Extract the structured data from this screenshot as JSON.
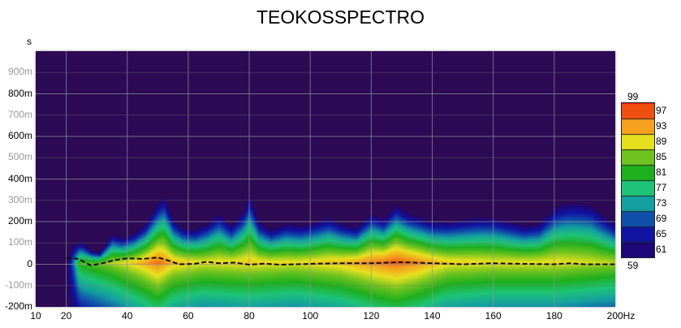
{
  "chart_data": {
    "type": "heatmap",
    "title": "TEOKOSSPECTRO",
    "ylabel": "s",
    "xlabel": "Hz",
    "xlim": [
      10,
      200
    ],
    "ylim_ms": [
      -200,
      1000
    ],
    "x_ticks": [
      "10",
      "20",
      "40",
      "60",
      "80",
      "100",
      "120",
      "140",
      "160",
      "180",
      "200Hz"
    ],
    "x_tick_values": [
      10,
      20,
      40,
      60,
      80,
      100,
      120,
      140,
      160,
      180,
      200
    ],
    "y_ticks": [
      {
        "label": "900m",
        "v": 900,
        "minor": true
      },
      {
        "label": "800m",
        "v": 800,
        "minor": false
      },
      {
        "label": "700m",
        "v": 700,
        "minor": true
      },
      {
        "label": "600m",
        "v": 600,
        "minor": false
      },
      {
        "label": "500m",
        "v": 500,
        "minor": true
      },
      {
        "label": "400m",
        "v": 400,
        "minor": false
      },
      {
        "label": "300m",
        "v": 300,
        "minor": true
      },
      {
        "label": "200m",
        "v": 200,
        "minor": false
      },
      {
        "label": "100m",
        "v": 100,
        "minor": true
      },
      {
        "label": "0",
        "v": 0,
        "minor": false
      },
      {
        "label": "-100m",
        "v": -100,
        "minor": true
      },
      {
        "label": "-200m",
        "v": -200,
        "minor": false
      }
    ],
    "colorbar": {
      "min_label": "59",
      "max_label": "99",
      "labels": [
        "97",
        "93",
        "89",
        "85",
        "81",
        "77",
        "73",
        "69",
        "65",
        "61"
      ],
      "range": [
        59,
        99
      ]
    },
    "decay_envelope_ms": {
      "freq": [
        20,
        22,
        25,
        28,
        31,
        35,
        38,
        42,
        46,
        50,
        52,
        55,
        58,
        62,
        66,
        70,
        74,
        78,
        80,
        83,
        87,
        92,
        97,
        102,
        106,
        110,
        115,
        120,
        124,
        128,
        132,
        136,
        140,
        145,
        150,
        155,
        160,
        165,
        170,
        175,
        180,
        184,
        188,
        192,
        196,
        200
      ],
      "top_ms": [
        0,
        100,
        110,
        70,
        60,
        150,
        130,
        150,
        200,
        300,
        330,
        220,
        180,
        170,
        200,
        250,
        190,
        260,
        340,
        210,
        170,
        200,
        190,
        210,
        230,
        200,
        180,
        250,
        220,
        290,
        250,
        230,
        210,
        210,
        220,
        230,
        230,
        210,
        190,
        200,
        280,
        300,
        300,
        290,
        240,
        200
      ]
    },
    "peak_level": {
      "freq": [
        20,
        25,
        35,
        45,
        50,
        55,
        65,
        80,
        95,
        110,
        120,
        128,
        135,
        145,
        160,
        180,
        200
      ],
      "level": [
        78,
        84,
        88,
        93,
        96,
        92,
        90,
        91,
        90,
        92,
        95,
        97,
        95,
        91,
        90,
        90,
        88
      ]
    },
    "peak_time_line": {
      "freq": [
        20,
        24,
        28,
        32,
        36,
        40,
        45,
        50,
        53,
        57,
        62,
        66,
        70,
        75,
        80,
        85,
        90,
        100,
        110,
        120,
        130,
        140,
        150,
        160,
        170,
        180,
        185,
        190,
        200
      ],
      "time_ms": [
        30,
        25,
        -5,
        5,
        20,
        28,
        25,
        32,
        20,
        0,
        2,
        12,
        5,
        8,
        -2,
        3,
        -2,
        2,
        5,
        5,
        10,
        5,
        0,
        5,
        2,
        0,
        5,
        0,
        0
      ]
    }
  }
}
